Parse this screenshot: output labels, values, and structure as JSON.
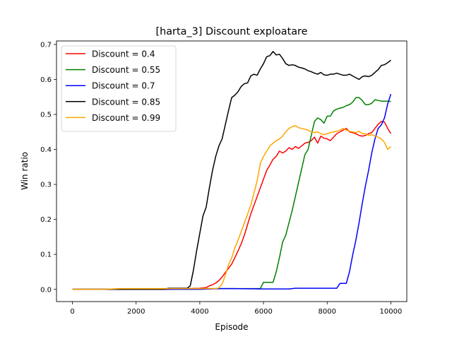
{
  "chart_data": {
    "type": "line",
    "title": "[harta_3] Discount  exploatare",
    "xlabel": "Episode",
    "ylabel": "Win ratio",
    "xlim": [
      -500,
      10500
    ],
    "ylim": [
      -0.035,
      0.71
    ],
    "x_ticks": [
      0,
      2000,
      4000,
      6000,
      8000,
      10000
    ],
    "y_ticks": [
      0.0,
      0.1,
      0.2,
      0.3,
      0.4,
      0.5,
      0.6,
      0.7
    ],
    "x_tick_labels": [
      "0",
      "2000",
      "4000",
      "6000",
      "8000",
      "10000"
    ],
    "y_tick_labels": [
      "0.0",
      "0.1",
      "0.2",
      "0.3",
      "0.4",
      "0.5",
      "0.6",
      "0.7"
    ],
    "grid": false,
    "legend_position": "top-left",
    "series": [
      {
        "name": "Discount = 0.4",
        "color": "#ff0000",
        "x": [
          0,
          1000,
          2000,
          3000,
          3600,
          4000,
          4200,
          4300,
          4400,
          4500,
          4600,
          4700,
          4800,
          4900,
          5000,
          5100,
          5200,
          5300,
          5400,
          5500,
          5600,
          5700,
          5800,
          5900,
          6000,
          6100,
          6200,
          6300,
          6400,
          6500,
          6600,
          6700,
          6800,
          6900,
          7000,
          7100,
          7200,
          7300,
          7400,
          7500,
          7600,
          7700,
          7800,
          7900,
          8000,
          8100,
          8200,
          8300,
          8400,
          8500,
          8600,
          8700,
          8800,
          8900,
          9000,
          9100,
          9200,
          9300,
          9400,
          9500,
          9600,
          9700,
          9800,
          9900,
          10000
        ],
        "y": [
          0.0,
          0.0,
          0.0,
          0.0,
          0.002,
          0.003,
          0.005,
          0.01,
          0.013,
          0.018,
          0.025,
          0.035,
          0.048,
          0.06,
          0.072,
          0.09,
          0.11,
          0.13,
          0.155,
          0.185,
          0.215,
          0.24,
          0.265,
          0.29,
          0.315,
          0.34,
          0.355,
          0.372,
          0.38,
          0.395,
          0.39,
          0.395,
          0.405,
          0.4,
          0.408,
          0.403,
          0.41,
          0.418,
          0.42,
          0.425,
          0.435,
          0.418,
          0.438,
          0.432,
          0.43,
          0.425,
          0.435,
          0.445,
          0.45,
          0.455,
          0.46,
          0.45,
          0.448,
          0.445,
          0.44,
          0.438,
          0.44,
          0.445,
          0.448,
          0.46,
          0.472,
          0.48,
          0.478,
          0.46,
          0.445
        ]
      },
      {
        "name": "Discount = 0.55",
        "color": "#008000",
        "x": [
          0,
          1000,
          2000,
          3000,
          4000,
          5000,
          5900,
          6000,
          6100,
          6300,
          6400,
          6500,
          6600,
          6700,
          6800,
          6900,
          7000,
          7100,
          7200,
          7300,
          7400,
          7500,
          7600,
          7700,
          7800,
          7900,
          8000,
          8100,
          8200,
          8300,
          8400,
          8500,
          8600,
          8700,
          8800,
          8900,
          9000,
          9100,
          9200,
          9300,
          9400,
          9500,
          9600,
          9700,
          9800,
          9900,
          10000
        ],
        "y": [
          0.0,
          0.0,
          0.0,
          0.002,
          0.002,
          0.002,
          0.002,
          0.02,
          0.02,
          0.02,
          0.05,
          0.09,
          0.135,
          0.155,
          0.19,
          0.225,
          0.265,
          0.305,
          0.345,
          0.385,
          0.4,
          0.44,
          0.48,
          0.49,
          0.485,
          0.475,
          0.495,
          0.495,
          0.51,
          0.515,
          0.518,
          0.52,
          0.525,
          0.528,
          0.535,
          0.548,
          0.548,
          0.54,
          0.528,
          0.528,
          0.532,
          0.542,
          0.54,
          0.538,
          0.538,
          0.538,
          0.537
        ]
      },
      {
        "name": "Discount = 0.7",
        "color": "#0000ff",
        "x": [
          0,
          1000,
          2000,
          3000,
          4000,
          4700,
          5000,
          6000,
          6800,
          7000,
          7500,
          8000,
          8100,
          8300,
          8400,
          8500,
          8600,
          8700,
          8800,
          8900,
          9000,
          9100,
          9200,
          9300,
          9400,
          9500,
          9600,
          9700,
          9800,
          9900,
          10000
        ],
        "y": [
          0.0,
          0.0,
          0.0,
          0.0,
          0.0,
          0.002,
          0.002,
          0.001,
          0.001,
          0.003,
          0.003,
          0.003,
          0.003,
          0.003,
          0.017,
          0.017,
          0.017,
          0.05,
          0.098,
          0.14,
          0.19,
          0.245,
          0.295,
          0.34,
          0.39,
          0.43,
          0.46,
          0.47,
          0.49,
          0.53,
          0.558
        ]
      },
      {
        "name": "Discount = 0.85",
        "color": "#000000",
        "x": [
          0,
          1000,
          2000,
          2900,
          3000,
          3600,
          3700,
          3800,
          3900,
          4000,
          4100,
          4200,
          4300,
          4400,
          4500,
          4600,
          4700,
          4800,
          4900,
          5000,
          5100,
          5200,
          5300,
          5400,
          5500,
          5600,
          5700,
          5800,
          5900,
          6000,
          6100,
          6200,
          6300,
          6400,
          6500,
          6600,
          6700,
          6800,
          6900,
          7000,
          7100,
          7200,
          7300,
          7400,
          7500,
          7600,
          7700,
          7800,
          7900,
          8000,
          8100,
          8200,
          8300,
          8400,
          8500,
          8600,
          8700,
          8800,
          8900,
          9000,
          9100,
          9200,
          9300,
          9400,
          9500,
          9600,
          9700,
          9800,
          9900,
          10000
        ],
        "y": [
          0.0,
          0.0,
          0.0,
          0.0,
          0.003,
          0.003,
          0.01,
          0.055,
          0.11,
          0.16,
          0.21,
          0.235,
          0.29,
          0.34,
          0.38,
          0.41,
          0.43,
          0.47,
          0.51,
          0.548,
          0.555,
          0.565,
          0.58,
          0.588,
          0.59,
          0.61,
          0.615,
          0.612,
          0.63,
          0.645,
          0.665,
          0.668,
          0.68,
          0.67,
          0.672,
          0.66,
          0.645,
          0.64,
          0.642,
          0.64,
          0.635,
          0.633,
          0.63,
          0.625,
          0.622,
          0.618,
          0.615,
          0.62,
          0.613,
          0.612,
          0.615,
          0.615,
          0.618,
          0.615,
          0.612,
          0.612,
          0.615,
          0.61,
          0.605,
          0.6,
          0.608,
          0.61,
          0.608,
          0.612,
          0.62,
          0.628,
          0.64,
          0.642,
          0.648,
          0.655
        ]
      },
      {
        "name": "Discount = 0.99",
        "color": "#ffa500",
        "x": [
          0,
          1000,
          1500,
          2000,
          3000,
          4000,
          4500,
          4600,
          4700,
          4800,
          4900,
          5000,
          5100,
          5200,
          5300,
          5400,
          5500,
          5600,
          5700,
          5800,
          5900,
          6000,
          6100,
          6200,
          6300,
          6400,
          6500,
          6600,
          6700,
          6800,
          6900,
          7000,
          7100,
          7200,
          7300,
          7400,
          7500,
          7600,
          7700,
          7800,
          7900,
          8000,
          8100,
          8200,
          8300,
          8400,
          8500,
          8600,
          8700,
          8800,
          8900,
          9000,
          9100,
          9200,
          9300,
          9400,
          9500,
          9600,
          9700,
          9800,
          9900,
          10000
        ],
        "y": [
          0.0,
          0.0,
          0.002,
          0.002,
          0.002,
          0.002,
          0.002,
          0.004,
          0.015,
          0.04,
          0.07,
          0.09,
          0.118,
          0.14,
          0.165,
          0.19,
          0.215,
          0.24,
          0.275,
          0.31,
          0.36,
          0.38,
          0.395,
          0.41,
          0.418,
          0.425,
          0.43,
          0.438,
          0.45,
          0.46,
          0.465,
          0.468,
          0.462,
          0.46,
          0.458,
          0.455,
          0.45,
          0.448,
          0.45,
          0.445,
          0.442,
          0.445,
          0.448,
          0.45,
          0.452,
          0.455,
          0.46,
          0.455,
          0.452,
          0.45,
          0.448,
          0.452,
          0.445,
          0.445,
          0.44,
          0.442,
          0.438,
          0.435,
          0.43,
          0.42,
          0.4,
          0.408
        ]
      }
    ]
  }
}
